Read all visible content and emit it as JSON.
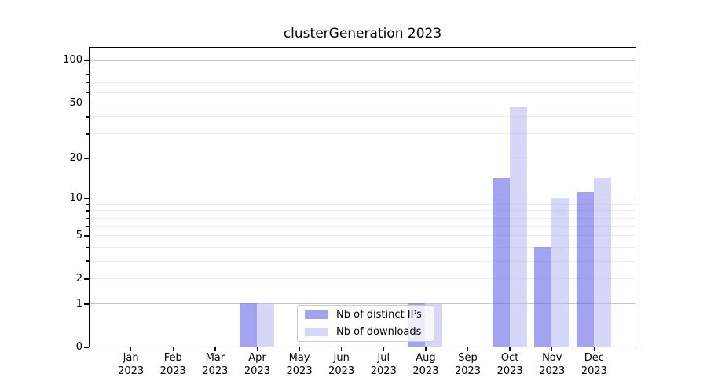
{
  "chart_data": {
    "type": "bar",
    "title": "clusterGeneration 2023",
    "categories": [
      "Jan",
      "Feb",
      "Mar",
      "Apr",
      "May",
      "Jun",
      "Jul",
      "Aug",
      "Sep",
      "Oct",
      "Nov",
      "Dec"
    ],
    "x_year_suffix": "2023",
    "series": [
      {
        "name": "Nb of distinct IPs",
        "color": "rgba(106,106,232,0.62)",
        "values": [
          0,
          0,
          0,
          1,
          0,
          0,
          0,
          1,
          0,
          14,
          4,
          11
        ]
      },
      {
        "name": "Nb of downloads",
        "color": "rgba(189,189,243,0.62)",
        "values": [
          0,
          0,
          0,
          1,
          0,
          0,
          0,
          1,
          0,
          46,
          10,
          14
        ]
      }
    ],
    "y_axis": {
      "scale": "log10(1+x)",
      "tick_labels": [
        0,
        1,
        2,
        5,
        10,
        20,
        50,
        100
      ],
      "major_gridlines": [
        1,
        10,
        100
      ],
      "minor_gridlines": [
        2,
        3,
        4,
        5,
        6,
        7,
        8,
        9,
        20,
        30,
        40,
        50,
        60,
        70,
        80,
        90
      ],
      "minor_unlabeled_ticks": [
        3,
        4,
        6,
        7,
        8,
        9,
        30,
        40,
        60,
        70,
        80,
        90
      ],
      "min": 0,
      "max": 123
    },
    "grid": "both",
    "legend_position": "lower center"
  },
  "colors": {
    "major_grid": "#c3c3c3",
    "minor_grid": "#ececec",
    "spine": "#000000",
    "legend_border": "#cccccc"
  }
}
